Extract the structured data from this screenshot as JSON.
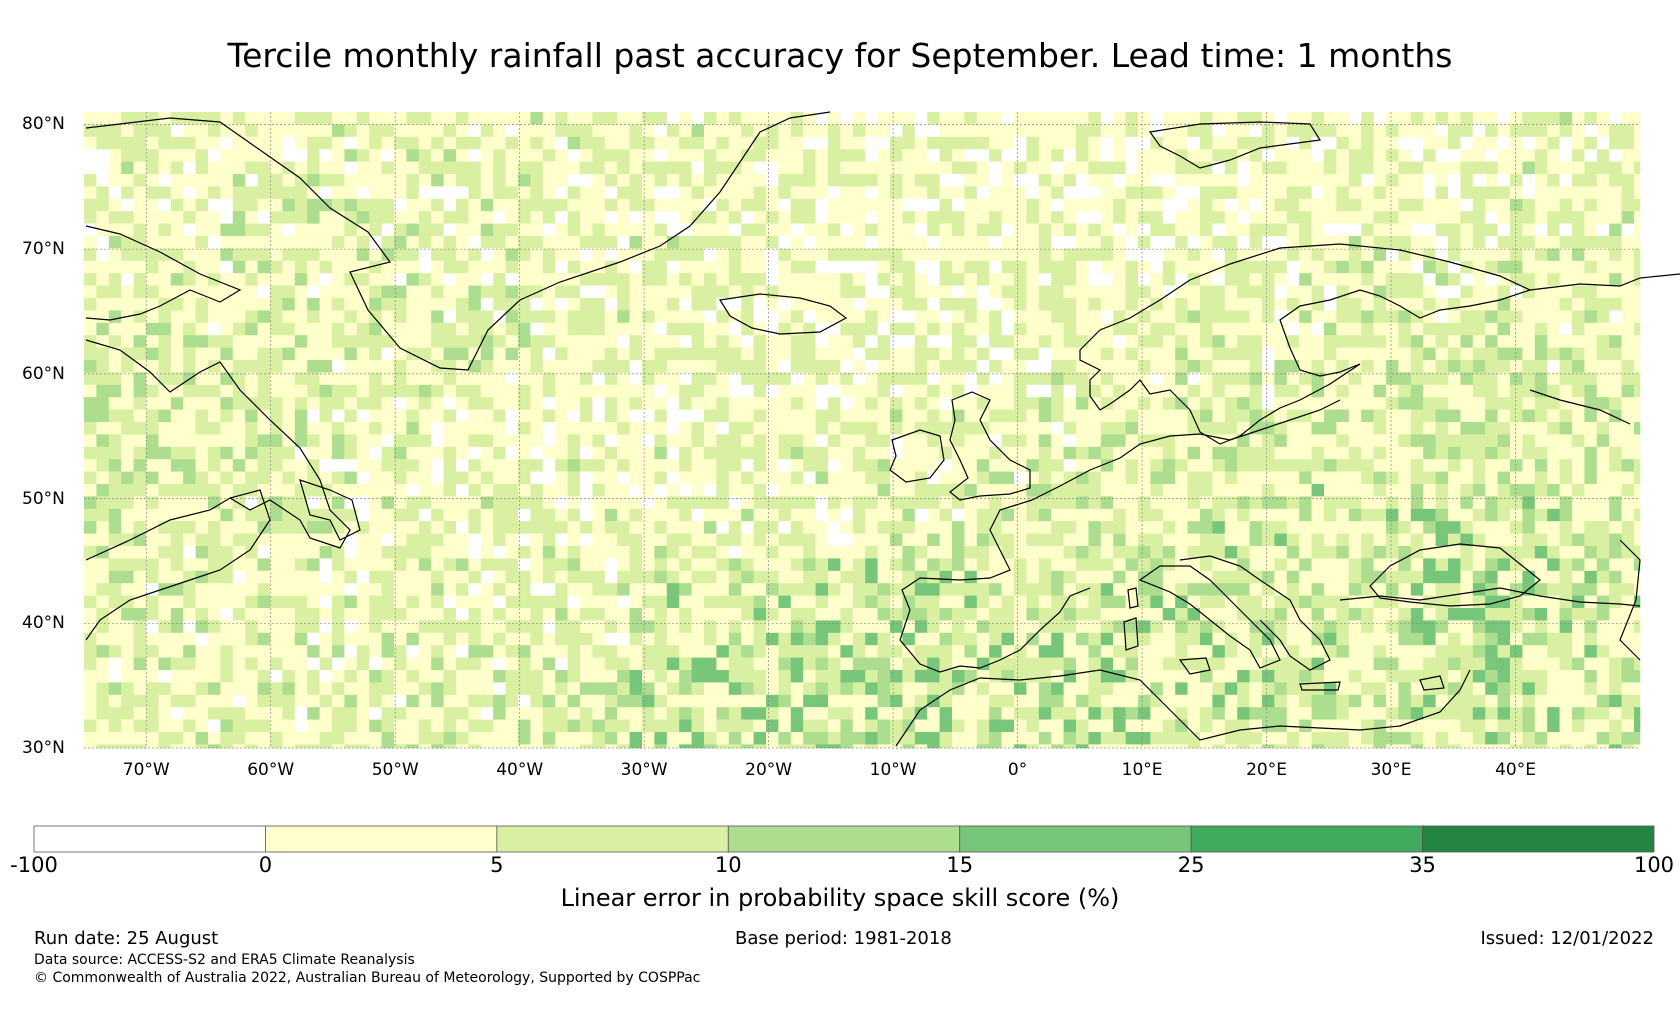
{
  "title": "Tercile monthly rainfall past accuracy for September. Lead time: 1 months",
  "map": {
    "lat_labels": [
      "80°N",
      "70°N",
      "60°N",
      "50°N",
      "40°N",
      "30°N"
    ],
    "lon_labels": [
      "70°W",
      "60°W",
      "50°W",
      "40°W",
      "30°W",
      "20°W",
      "10°W",
      "0°",
      "10°E",
      "20°E",
      "30°E",
      "40°E"
    ],
    "lat_range": [
      30,
      81
    ],
    "lon_range": [
      -75,
      50
    ]
  },
  "colorbar": {
    "ticks": [
      "-100",
      "0",
      "5",
      "10",
      "15",
      "25",
      "35",
      "100"
    ],
    "colors": [
      "#ffffff",
      "#ffffcc",
      "#d9f0a3",
      "#addd8e",
      "#78c679",
      "#41ab5d",
      "#238443"
    ],
    "label": "Linear error in probability space skill score (%)"
  },
  "footer": {
    "run_date": "Run date: 25 August",
    "base_period": "Base period: 1981-2018",
    "issued": "Issued: 12/01/2022",
    "data_source": "Data source: ACCESS-S2 and ERA5 Climate Reanalysis",
    "copyright": "© Commonwealth of Australia 2022, Australian Bureau of Meteorology, Supported by COSPPac"
  }
}
